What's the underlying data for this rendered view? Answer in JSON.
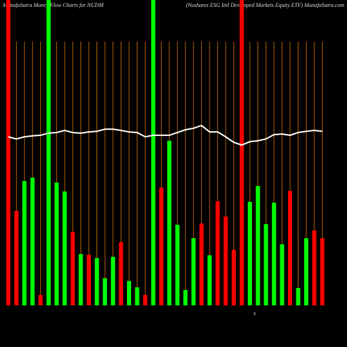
{
  "chart_data": {
    "type": "bar",
    "title": "MunafaSutra Money Flow Charts for NUDM",
    "subtitle": "(Nushares ESG Intl Developed Markets Equity ETF) MunafaSutra.com",
    "annotation": "s",
    "ylim": [
      0,
      100
    ],
    "values": [
      100,
      30.9,
      40.7,
      41.8,
      3.4,
      100,
      40.2,
      37.3,
      24.1,
      16.8,
      16.6,
      15.5,
      8.9,
      15.9,
      20.7,
      8.0,
      5.9,
      3.4,
      100,
      38.6,
      53.9,
      26.4,
      5.0,
      22.0,
      26.8,
      16.4,
      34.1,
      29.1,
      18.2,
      100,
      33.9,
      39.1,
      26.6,
      33.6,
      20.0,
      37.5,
      5.7,
      22.0,
      24.5,
      22.0
    ],
    "bar_colors": [
      "#ff0000",
      "#ff0000",
      "#00ff00",
      "#00ff00",
      "#ff0000",
      "#00ff00",
      "#00ff00",
      "#00ff00",
      "#ff0000",
      "#00ff00",
      "#ff0000",
      "#00ff00",
      "#00ff00",
      "#00ff00",
      "#ff0000",
      "#00ff00",
      "#00ff00",
      "#ff0000",
      "#00ff00",
      "#ff0000",
      "#00ff00",
      "#00ff00",
      "#00ff00",
      "#00ff00",
      "#ff0000",
      "#00ff00",
      "#ff0000",
      "#ff0000",
      "#ff0000",
      "#ff0000",
      "#00ff00",
      "#00ff00",
      "#00ff00",
      "#00ff00",
      "#00ff00",
      "#ff0000",
      "#00ff00",
      "#00ff00",
      "#ff0000",
      "#ff0000"
    ],
    "line": {
      "color": "#ffffff",
      "values": [
        55.2,
        54.5,
        55.2,
        55.5,
        55.7,
        56.4,
        56.6,
        57.3,
        56.6,
        56.4,
        56.8,
        57.0,
        57.7,
        57.7,
        57.3,
        56.8,
        56.6,
        55.2,
        55.7,
        55.7,
        55.7,
        56.6,
        57.5,
        58.0,
        58.9,
        56.8,
        56.8,
        55.2,
        53.4,
        52.5,
        53.6,
        53.9,
        54.5,
        55.9,
        56.1,
        55.7,
        56.6,
        57.0,
        57.3,
        57.0
      ]
    },
    "grid": true,
    "grid_color": "#b8600a"
  }
}
